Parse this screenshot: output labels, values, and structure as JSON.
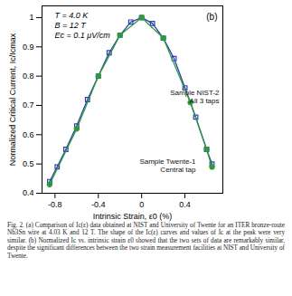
{
  "chart_data": {
    "type": "line",
    "title": "(b)",
    "x_label": "Intrinsic Strain, ε0 (%)",
    "y_label": "Normalized Critical Current, Ic/Icmax",
    "annotations": [
      "T = 4.0 K",
      "B = 12 T",
      "Ec = 0.1 μV/cm"
    ],
    "series": [
      {
        "name": "Sample NIST-2",
        "subtitle": "All 3 taps",
        "color": "#2b3fb0",
        "marker": "square",
        "line_style": "solid",
        "x": [
          -0.85,
          -0.78,
          -0.7,
          -0.6,
          -0.5,
          -0.4,
          -0.3,
          -0.2,
          -0.1,
          0,
          0.1,
          0.2,
          0.3,
          0.4,
          0.5,
          0.6,
          0.65
        ],
        "values": [
          0.44,
          0.49,
          0.55,
          0.63,
          0.72,
          0.8,
          0.88,
          0.94,
          0.985,
          1.0,
          0.98,
          0.93,
          0.86,
          0.76,
          0.66,
          0.55,
          0.5
        ]
      },
      {
        "name": "Sample Twente-1",
        "subtitle": "Central tap",
        "color": "#2e9a3a",
        "marker": "circle",
        "line_style": "solid",
        "x": [
          -0.85,
          -0.6,
          -0.4,
          -0.2,
          0,
          0.2,
          0.45,
          0.6,
          0.65
        ],
        "values": [
          0.43,
          0.62,
          0.8,
          0.94,
          1.0,
          0.93,
          0.71,
          0.55,
          0.49
        ]
      }
    ],
    "xlim": [
      -0.92,
      0.75
    ],
    "xticks": [
      -0.8,
      -0.4,
      0,
      0.4
    ],
    "ylim": [
      0.4,
      1.04
    ],
    "yticks": [
      0.4,
      0.5,
      0.6,
      0.7,
      0.8,
      0.9,
      1
    ],
    "grid": false,
    "caption": "Fig. 2. (a) Comparison of Ic(ε) data obtained at NIST and University of Twente for an ITER bronze-route Nb3Sn wire at 4.03 K and 12 T. The shape of the Ic(ε) curves and values of Ic at the peak were very similar. (b) Normalized Ic vs. intrinsic strain ε0 showed that the two sets of data are remarkably similar, despite the significant differences between the two strain measurement facilities at NIST and University of Twente."
  }
}
